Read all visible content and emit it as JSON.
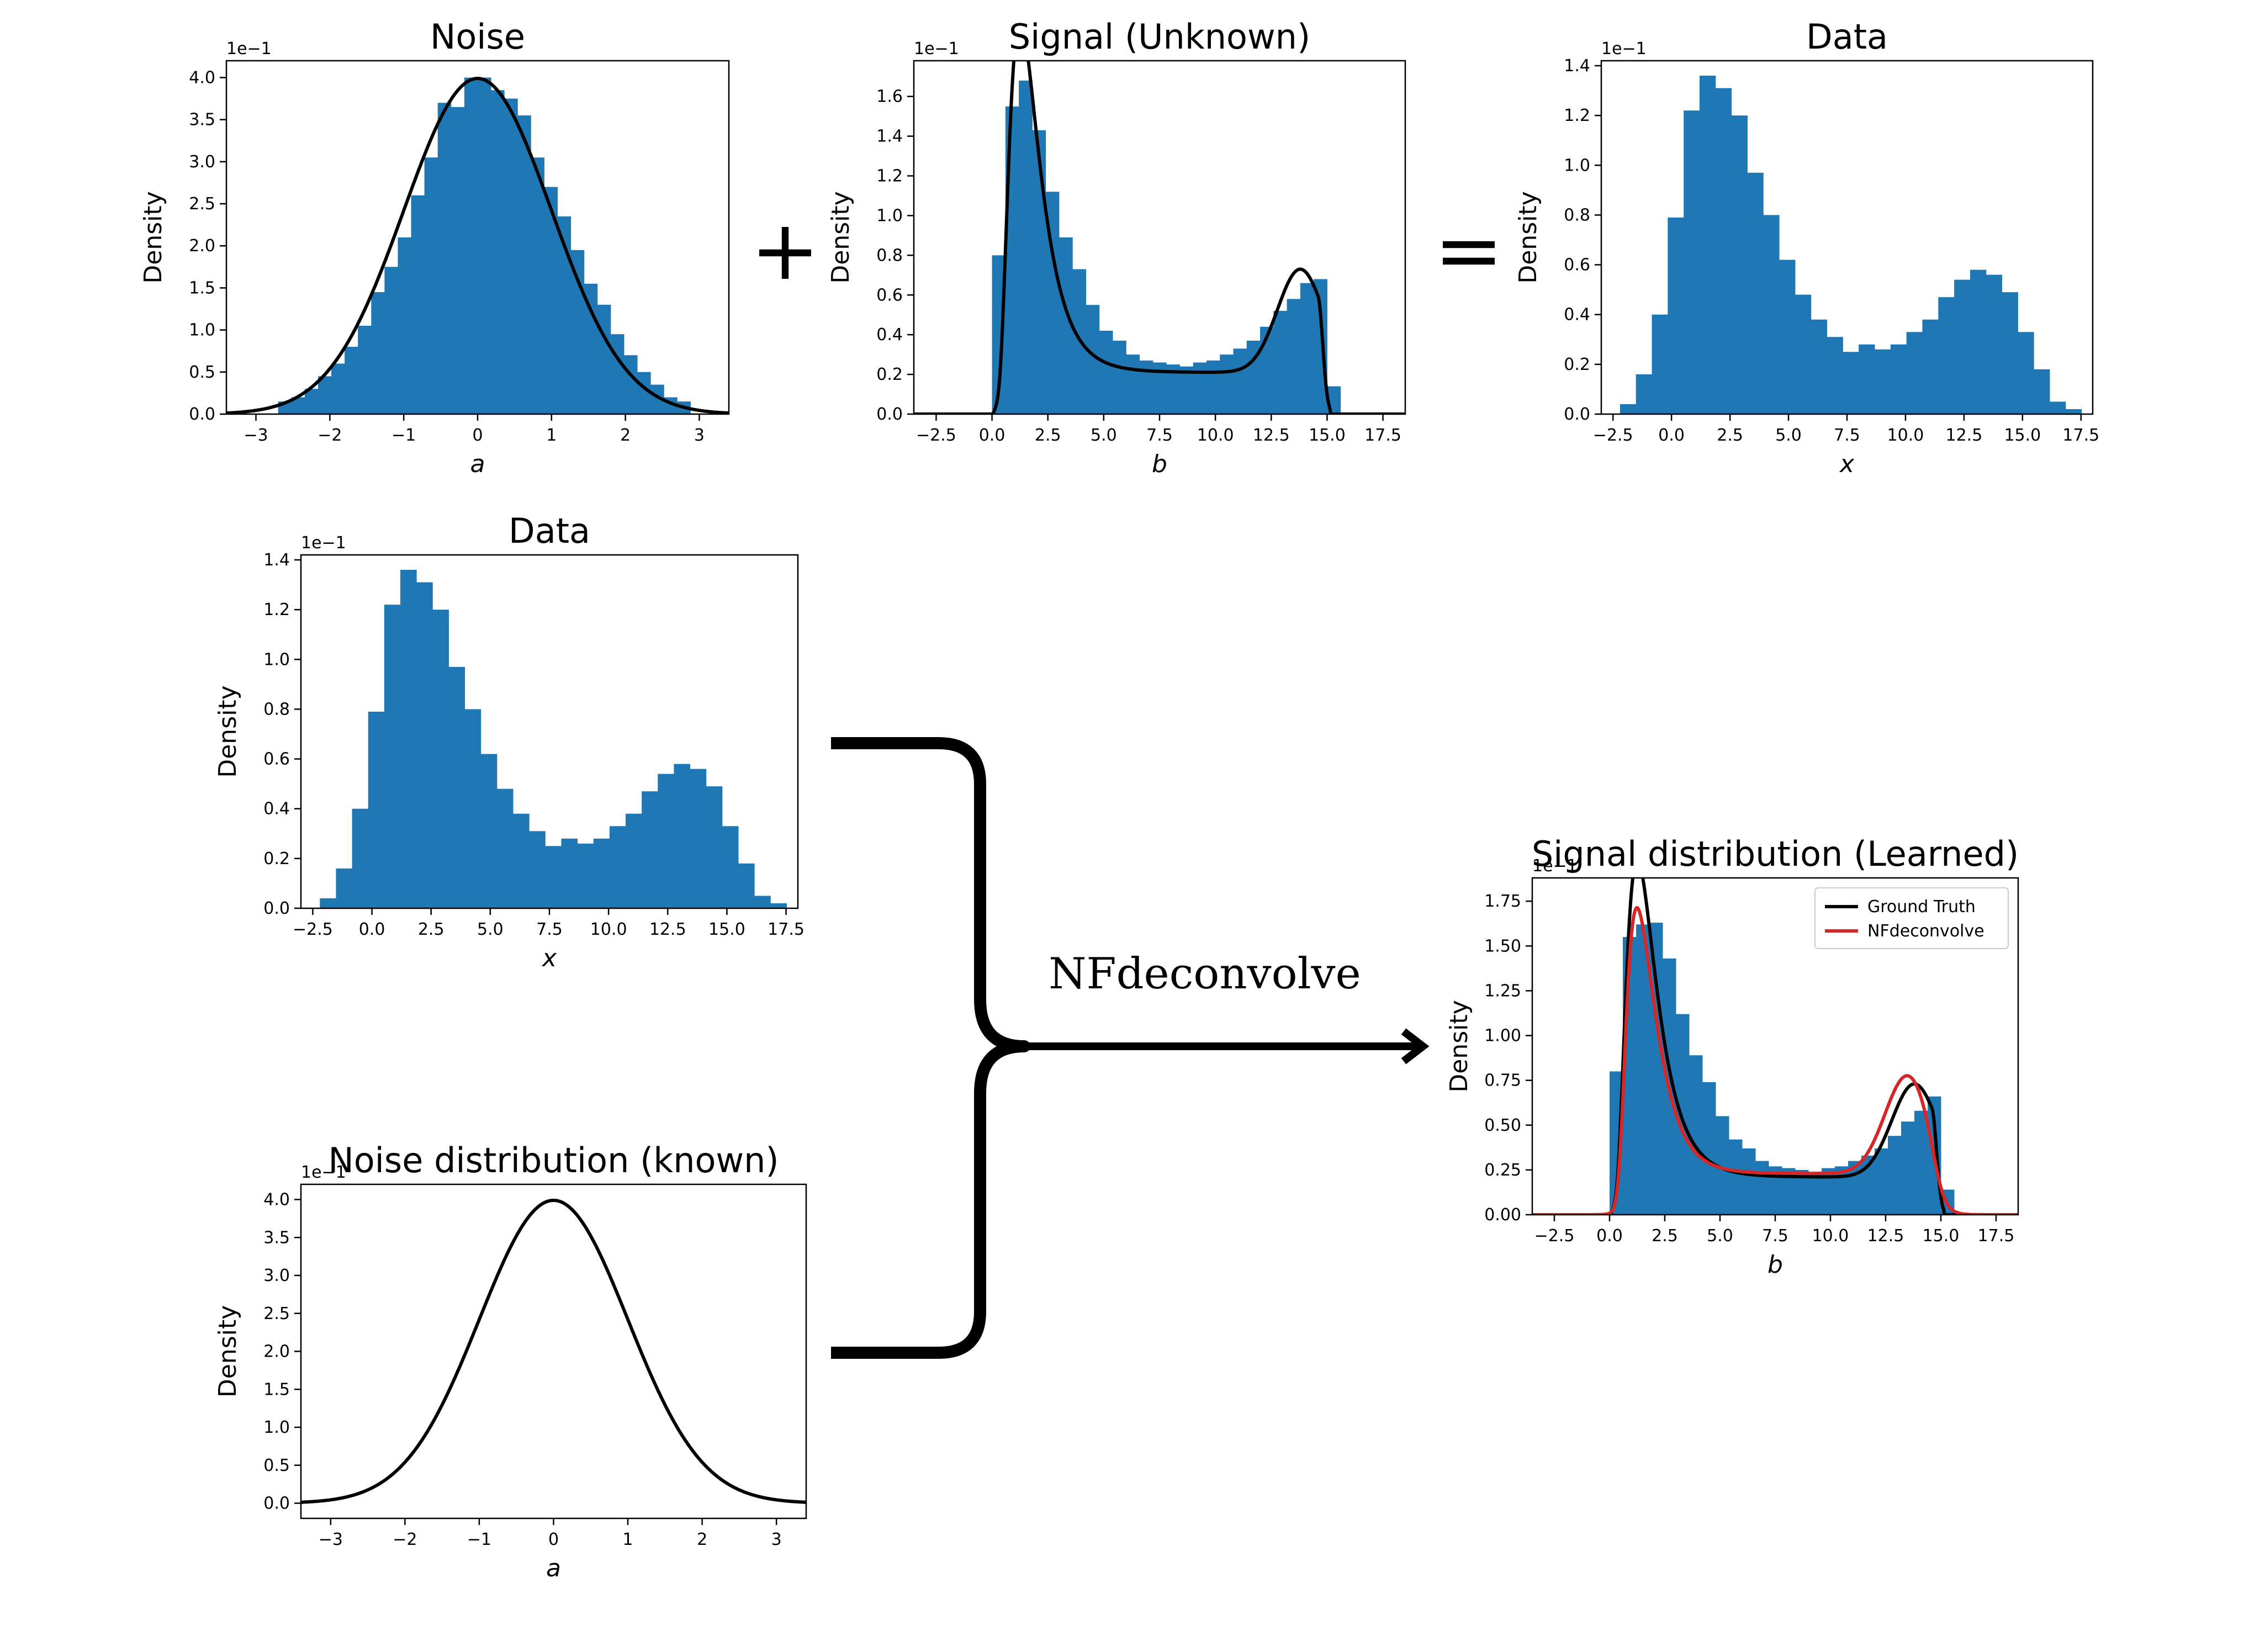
{
  "diagram": {
    "plus_symbol": "+",
    "equals_symbol": "=",
    "method_label": "NFdeconvolve",
    "colors": {
      "bar": "#1f77b4",
      "line_black": "#000000",
      "line_red": "#d62728"
    }
  },
  "chart_data": [
    {
      "id": "noise",
      "type": "bar",
      "title": "Noise",
      "xlabel": "a",
      "ylabel": "Density",
      "offset_text": "1e−1",
      "xlim": [
        -3.4,
        3.4
      ],
      "ylim": [
        0,
        4.2
      ],
      "xticks": [
        -3,
        -2,
        -1,
        0,
        1,
        2,
        3
      ],
      "xtick_labels": [
        "−3",
        "−2",
        "−1",
        "0",
        "1",
        "2",
        "3"
      ],
      "yticks": [
        0,
        0.5,
        1,
        1.5,
        2,
        2.5,
        3,
        3.5,
        4
      ],
      "ytick_labels": [
        "0.0",
        "0.5",
        "1.0",
        "1.5",
        "2.0",
        "2.5",
        "3.0",
        "3.5",
        "4.0"
      ],
      "bins": {
        "start": -2.7,
        "width": 0.18,
        "values": [
          0.15,
          0.2,
          0.3,
          0.45,
          0.6,
          0.8,
          1.05,
          1.45,
          1.75,
          2.1,
          2.6,
          3.05,
          3.7,
          3.65,
          4.0,
          4.0,
          3.85,
          3.75,
          3.55,
          3.05,
          2.7,
          2.35,
          1.95,
          1.55,
          1.3,
          0.95,
          0.7,
          0.5,
          0.35,
          0.2,
          0.15
        ]
      },
      "curves": [
        {
          "name": "",
          "kind": "gaussian",
          "mu": 0,
          "sigma": 1,
          "scale": 10,
          "color": "#000000"
        }
      ]
    },
    {
      "id": "signal",
      "type": "bar",
      "title": "Signal (Unknown)",
      "xlabel": "b",
      "ylabel": "Density",
      "offset_text": "1e−1",
      "xlim": [
        -3.5,
        18.5
      ],
      "ylim": [
        0,
        1.78
      ],
      "xticks": [
        -2.5,
        0,
        2.5,
        5,
        7.5,
        10,
        12.5,
        15,
        17.5
      ],
      "xtick_labels": [
        "−2.5",
        "0.0",
        "2.5",
        "5.0",
        "7.5",
        "10.0",
        "12.5",
        "15.0",
        "17.5"
      ],
      "yticks": [
        0,
        0.2,
        0.4,
        0.6,
        0.8,
        1.0,
        1.2,
        1.4,
        1.6
      ],
      "ytick_labels": [
        "0.0",
        "0.2",
        "0.4",
        "0.6",
        "0.8",
        "1.0",
        "1.2",
        "1.4",
        "1.6"
      ],
      "bins": {
        "start": 0,
        "width": 0.6,
        "values": [
          0.8,
          1.55,
          1.68,
          1.43,
          1.12,
          0.89,
          0.73,
          0.55,
          0.42,
          0.37,
          0.3,
          0.27,
          0.26,
          0.25,
          0.24,
          0.26,
          0.27,
          0.3,
          0.33,
          0.37,
          0.44,
          0.52,
          0.58,
          0.66,
          0.68,
          0.14
        ]
      },
      "curves": [
        {
          "name": "",
          "kind": "signal",
          "color": "#000000"
        }
      ]
    },
    {
      "id": "data_top",
      "type": "bar",
      "title": "Data",
      "xlabel": "x",
      "ylabel": "Density",
      "offset_text": "1e−1",
      "xlim": [
        -3.0,
        18.0
      ],
      "ylim": [
        0,
        1.42
      ],
      "xticks": [
        -2.5,
        0,
        2.5,
        5,
        7.5,
        10,
        12.5,
        15,
        17.5
      ],
      "xtick_labels": [
        "−2.5",
        "0.0",
        "2.5",
        "5.0",
        "7.5",
        "10.0",
        "12.5",
        "15.0",
        "17.5"
      ],
      "yticks": [
        0,
        0.2,
        0.4,
        0.6,
        0.8,
        1.0,
        1.2,
        1.4
      ],
      "ytick_labels": [
        "0.0",
        "0.2",
        "0.4",
        "0.6",
        "0.8",
        "1.0",
        "1.2",
        "1.4"
      ],
      "bins": {
        "start": -2.2,
        "width": 0.68,
        "values": [
          0.04,
          0.16,
          0.4,
          0.79,
          1.22,
          1.36,
          1.31,
          1.2,
          0.97,
          0.8,
          0.62,
          0.48,
          0.38,
          0.31,
          0.25,
          0.28,
          0.26,
          0.28,
          0.33,
          0.38,
          0.47,
          0.54,
          0.58,
          0.56,
          0.49,
          0.33,
          0.18,
          0.05,
          0.02
        ]
      },
      "curves": []
    },
    {
      "id": "data_input",
      "type": "bar",
      "title": "Data",
      "xlabel": "x",
      "ylabel": "Density",
      "offset_text": "1e−1",
      "xlim": [
        -3.0,
        18.0
      ],
      "ylim": [
        0,
        1.42
      ],
      "xticks": [
        -2.5,
        0,
        2.5,
        5,
        7.5,
        10,
        12.5,
        15,
        17.5
      ],
      "xtick_labels": [
        "−2.5",
        "0.0",
        "2.5",
        "5.0",
        "7.5",
        "10.0",
        "12.5",
        "15.0",
        "17.5"
      ],
      "yticks": [
        0,
        0.2,
        0.4,
        0.6,
        0.8,
        1.0,
        1.2,
        1.4
      ],
      "ytick_labels": [
        "0.0",
        "0.2",
        "0.4",
        "0.6",
        "0.8",
        "1.0",
        "1.2",
        "1.4"
      ],
      "bins": {
        "start": -2.2,
        "width": 0.68,
        "values": [
          0.04,
          0.16,
          0.4,
          0.79,
          1.22,
          1.36,
          1.31,
          1.2,
          0.97,
          0.8,
          0.62,
          0.48,
          0.38,
          0.31,
          0.25,
          0.28,
          0.26,
          0.28,
          0.33,
          0.38,
          0.47,
          0.54,
          0.58,
          0.56,
          0.49,
          0.33,
          0.18,
          0.05,
          0.02
        ]
      },
      "curves": []
    },
    {
      "id": "noise_known",
      "type": "line",
      "title": "Noise distribution (known)",
      "xlabel": "a",
      "ylabel": "Density",
      "offset_text": "1e−1",
      "xlim": [
        -3.4,
        3.4
      ],
      "ylim": [
        -0.2,
        4.2
      ],
      "xticks": [
        -3,
        -2,
        -1,
        0,
        1,
        2,
        3
      ],
      "xtick_labels": [
        "−3",
        "−2",
        "−1",
        "0",
        "1",
        "2",
        "3"
      ],
      "yticks": [
        0,
        0.5,
        1,
        1.5,
        2,
        2.5,
        3,
        3.5,
        4
      ],
      "ytick_labels": [
        "0.0",
        "0.5",
        "1.0",
        "1.5",
        "2.0",
        "2.5",
        "3.0",
        "3.5",
        "4.0"
      ],
      "curves": [
        {
          "name": "",
          "kind": "gaussian",
          "mu": 0,
          "sigma": 1,
          "scale": 10,
          "color": "#000000"
        }
      ]
    },
    {
      "id": "signal_learned",
      "type": "bar",
      "title": "Signal distribution (Learned)",
      "xlabel": "b",
      "ylabel": "Density",
      "offset_text": "1e−1",
      "xlim": [
        -3.5,
        18.5
      ],
      "ylim": [
        0,
        1.88
      ],
      "xticks": [
        -2.5,
        0,
        2.5,
        5,
        7.5,
        10,
        12.5,
        15,
        17.5
      ],
      "xtick_labels": [
        "−2.5",
        "0.0",
        "2.5",
        "5.0",
        "7.5",
        "10.0",
        "12.5",
        "15.0",
        "17.5"
      ],
      "yticks": [
        0,
        0.25,
        0.5,
        0.75,
        1.0,
        1.25,
        1.5,
        1.75
      ],
      "ytick_labels": [
        "0.00",
        "0.25",
        "0.50",
        "0.75",
        "1.00",
        "1.25",
        "1.50",
        "1.75"
      ],
      "bins": {
        "start": 0,
        "width": 0.6,
        "values": [
          0.8,
          1.55,
          1.62,
          1.63,
          1.43,
          1.12,
          0.89,
          0.74,
          0.55,
          0.42,
          0.37,
          0.3,
          0.27,
          0.26,
          0.25,
          0.24,
          0.26,
          0.27,
          0.3,
          0.33,
          0.37,
          0.44,
          0.52,
          0.58,
          0.66,
          0.14
        ]
      },
      "legend": {
        "loc": "upper right",
        "entries": [
          {
            "label": "Ground Truth",
            "color": "#000000"
          },
          {
            "label": "NFdeconvolve",
            "color": "#d62728"
          }
        ]
      },
      "curves": [
        {
          "name": "Ground Truth",
          "kind": "signal",
          "color": "#000000"
        },
        {
          "name": "NFdeconvolve",
          "kind": "learned",
          "color": "#d62728"
        }
      ]
    }
  ]
}
